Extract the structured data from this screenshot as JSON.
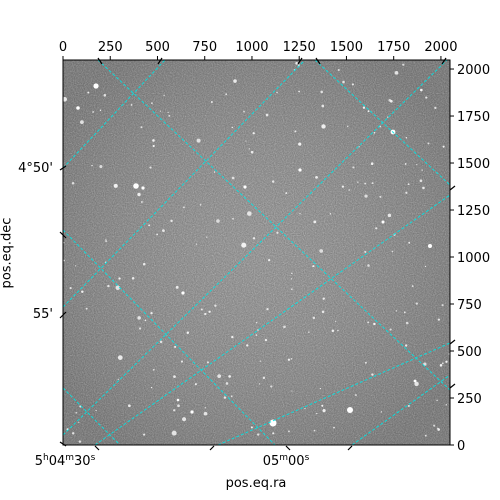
{
  "figure": {
    "top_ticks": [
      "0",
      "250",
      "500",
      "750",
      "1000",
      "1250",
      "1500",
      "1750",
      "2000"
    ],
    "top_tick_values": [
      0,
      250,
      500,
      750,
      1000,
      1250,
      1500,
      1750,
      2000
    ],
    "right_ticks": [
      "0",
      "250",
      "500",
      "750",
      "1000",
      "1250",
      "1500",
      "1750",
      "2000"
    ],
    "right_tick_values": [
      0,
      250,
      500,
      750,
      1000,
      1250,
      1500,
      1750,
      2000
    ],
    "pixel_range": [
      0,
      2048
    ],
    "left_ticks": [
      {
        "label_main": "4°50'",
        "label_sup": "",
        "label_tail": ""
      },
      {
        "label_main": "55'",
        "label_sup": "",
        "label_tail": ""
      }
    ],
    "bottom_ticks": [
      {
        "label_main": "5",
        "label_sup": "h",
        "label_tail": "04",
        "label_sup2": "m",
        "label_tail2": "30",
        "label_sup3": "s"
      },
      {
        "label_main": "05",
        "label_sup": "m",
        "label_tail": "00",
        "label_sup2": "s",
        "label_tail2": "",
        "label_sup3": ""
      }
    ],
    "xlabel": "pos.eq.ra",
    "ylabel": "pos.eq.dec",
    "grid_color": "#00e5e5",
    "image_colormap": "gray"
  }
}
